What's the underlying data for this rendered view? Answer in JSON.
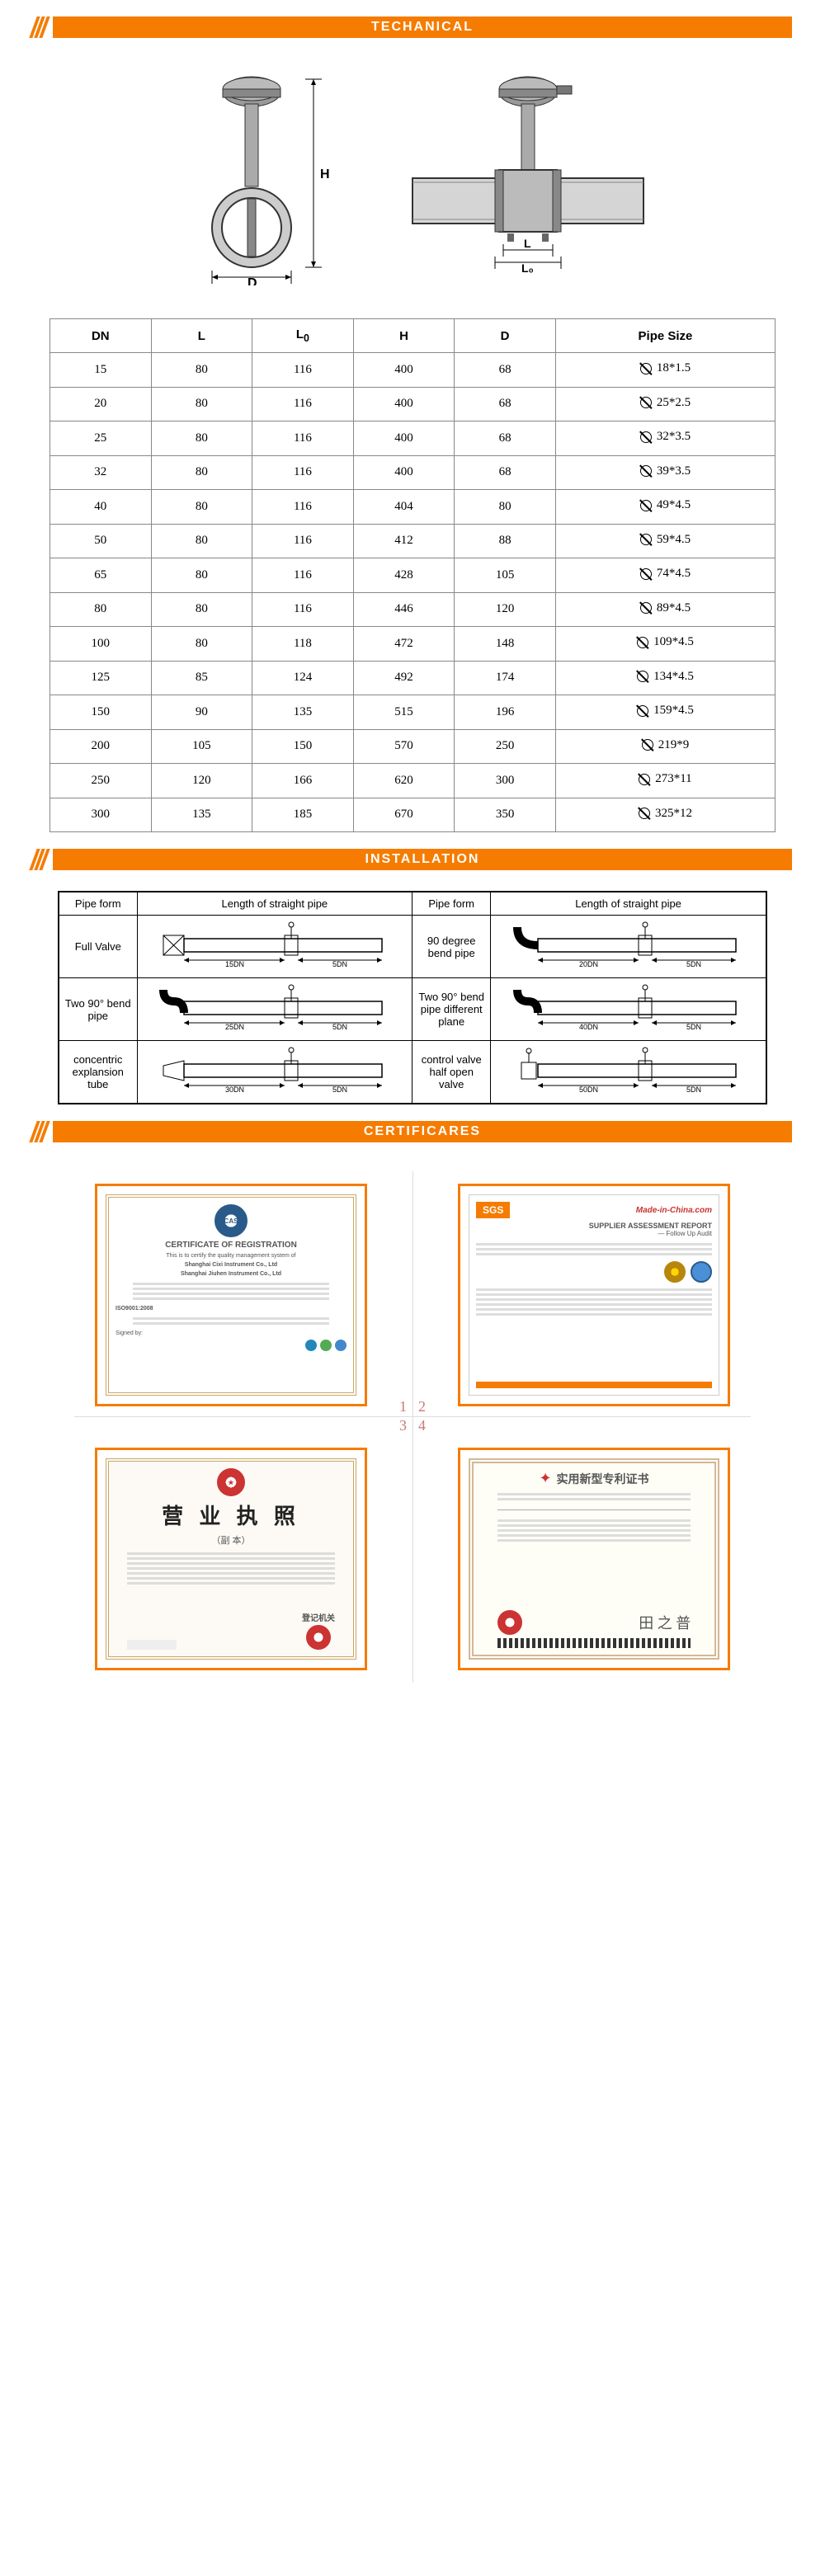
{
  "sections": {
    "technical": "TECHANICAL",
    "installation": "INSTALLATION",
    "certificates": "CERTIFICARES"
  },
  "colors": {
    "accent": "#f57c00",
    "border": "#888",
    "table_border_dark": "#000000"
  },
  "spec_table": {
    "headers": [
      "DN",
      "L",
      "L₀",
      "H",
      "D",
      "Pipe Size"
    ],
    "rows": [
      [
        "15",
        "80",
        "116",
        "400",
        "68",
        "18*1.5"
      ],
      [
        "20",
        "80",
        "116",
        "400",
        "68",
        "25*2.5"
      ],
      [
        "25",
        "80",
        "116",
        "400",
        "68",
        "32*3.5"
      ],
      [
        "32",
        "80",
        "116",
        "400",
        "68",
        "39*3.5"
      ],
      [
        "40",
        "80",
        "116",
        "404",
        "80",
        "49*4.5"
      ],
      [
        "50",
        "80",
        "116",
        "412",
        "88",
        "59*4.5"
      ],
      [
        "65",
        "80",
        "116",
        "428",
        "105",
        "74*4.5"
      ],
      [
        "80",
        "80",
        "116",
        "446",
        "120",
        "89*4.5"
      ],
      [
        "100",
        "80",
        "118",
        "472",
        "148",
        "109*4.5"
      ],
      [
        "125",
        "85",
        "124",
        "492",
        "174",
        "134*4.5"
      ],
      [
        "150",
        "90",
        "135",
        "515",
        "196",
        "159*4.5"
      ],
      [
        "200",
        "105",
        "150",
        "570",
        "250",
        "219*9"
      ],
      [
        "250",
        "120",
        "166",
        "620",
        "300",
        "273*11"
      ],
      [
        "300",
        "135",
        "185",
        "670",
        "350",
        "325*12"
      ]
    ]
  },
  "install_table": {
    "headers": [
      "Pipe form",
      "Length of straight pipe",
      "Pipe form",
      "Length of straight pipe"
    ],
    "rows": [
      [
        {
          "label": "Full Valve",
          "dn1": "15DN",
          "dn2": "5DN"
        },
        {
          "label": "90 degree bend pipe",
          "dn1": "20DN",
          "dn2": "5DN"
        }
      ],
      [
        {
          "label": "Two 90° bend pipe",
          "dn1": "25DN",
          "dn2": "5DN"
        },
        {
          "label": "Two 90° bend pipe different plane",
          "dn1": "40DN",
          "dn2": "5DN"
        }
      ],
      [
        {
          "label": "concentric explansion tube",
          "dn1": "30DN",
          "dn2": "5DN"
        },
        {
          "label": "control valve half open valve",
          "dn1": "50DN",
          "dn2": "5DN"
        }
      ]
    ]
  },
  "diagram_labels": {
    "H": "H",
    "D": "D",
    "L": "L",
    "L0": "L₀"
  },
  "certificates": {
    "grid_nums": [
      "1",
      "2",
      "3",
      "4"
    ],
    "cas": {
      "seal": "CAS",
      "title": "CERTIFICATE OF REGISTRATION",
      "subtitle": "This is to certify the quality management system of",
      "company1": "Shanghai Cixi Instrument Co., Ltd",
      "company2": "Shanghai Jiuhen Instrument Co., Ltd",
      "std": "ISO9001:2008",
      "signed": "Signed by:"
    },
    "sgs": {
      "logo": "SGS",
      "site": "Made-in-China.com",
      "title": "SUPPLIER ASSESSMENT REPORT",
      "subtitle": "— Follow Up Audit"
    },
    "license": {
      "chars": "营 业 执 照",
      "sub": "（副 本）",
      "reg_label": "登记机关"
    },
    "patent": {
      "title": "实用新型专利证书"
    }
  }
}
